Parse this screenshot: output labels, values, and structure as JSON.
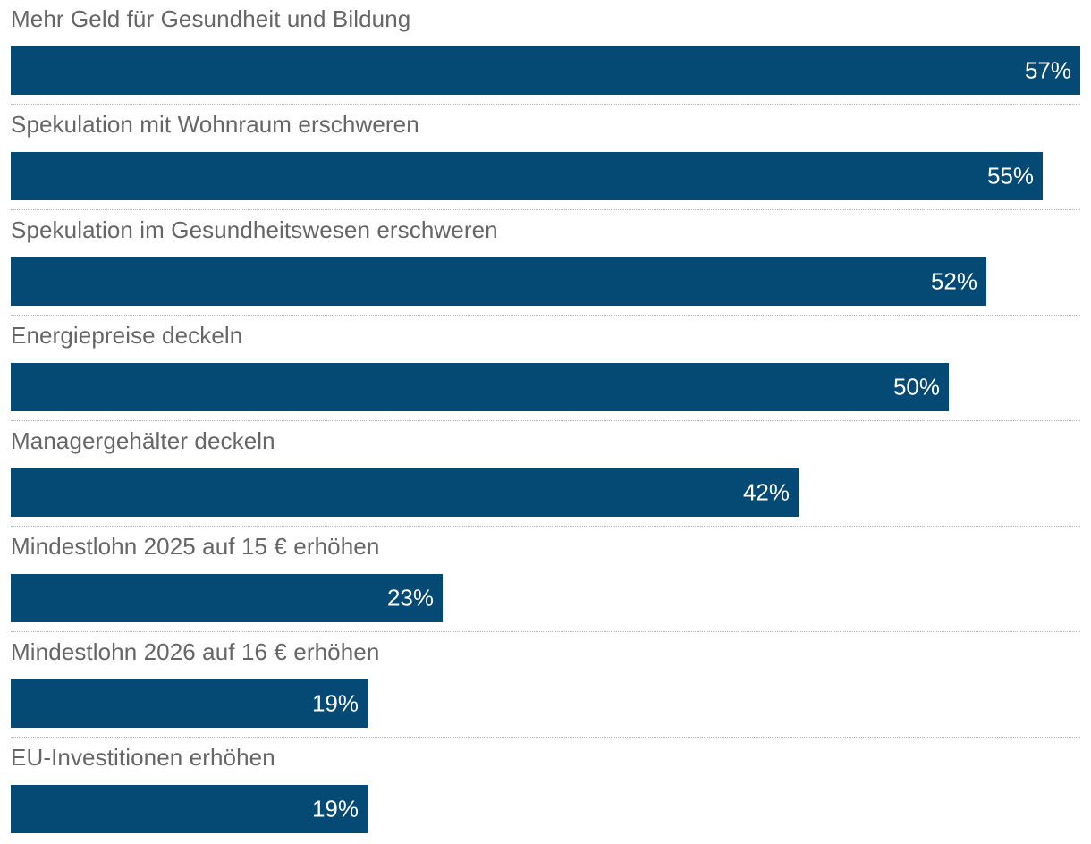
{
  "chart_data": {
    "type": "bar",
    "orientation": "horizontal",
    "bar_color": "#054a74",
    "label_color": "#666666",
    "value_color": "#ffffff",
    "xlim": [
      0,
      57
    ],
    "categories": [
      "Mehr Geld für Gesundheit und Bildung",
      "Spekulation mit Wohnraum erschweren",
      "Spekulation im Gesundheitswesen erschweren",
      "Energiepreise deckeln",
      "Managergehälter deckeln",
      "Mindestlohn 2025 auf 15 € erhöhen",
      "Mindestlohn 2026 auf 16 € erhöhen",
      "EU-Investitionen erhöhen"
    ],
    "values": [
      57,
      55,
      52,
      50,
      42,
      23,
      19,
      19
    ],
    "value_labels": [
      "57%",
      "55%",
      "52%",
      "50%",
      "42%",
      "23%",
      "19%",
      "19%"
    ]
  }
}
